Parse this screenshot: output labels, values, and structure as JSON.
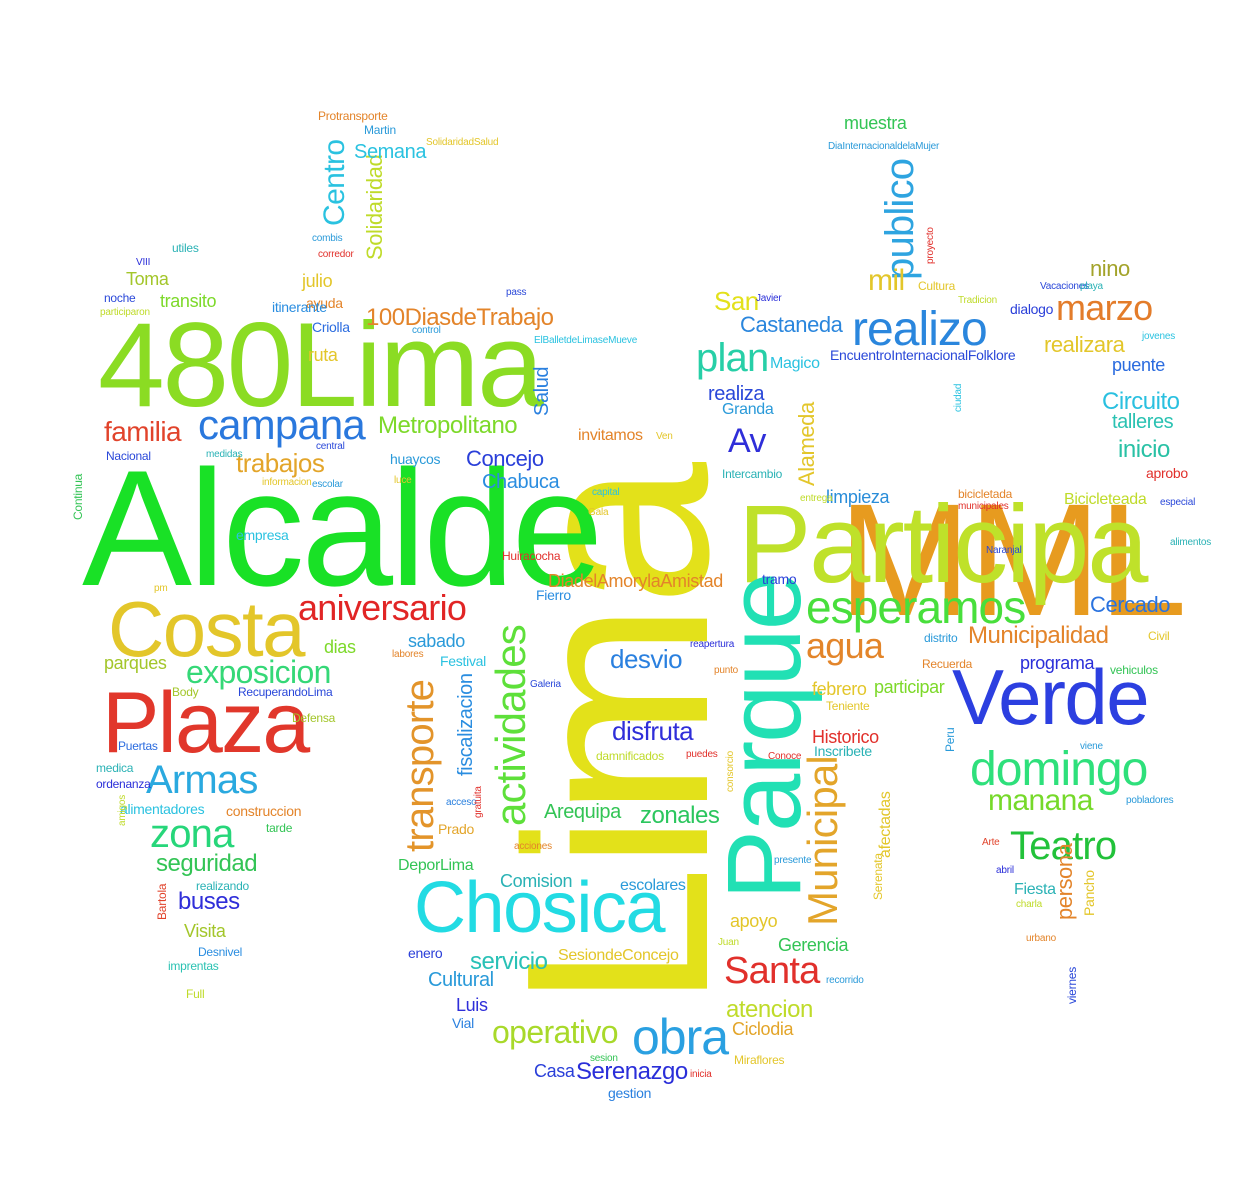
{
  "words": [
    {
      "text": "Lima",
      "color": "#e3e11a"
    },
    {
      "text": "MML",
      "color": "#e79b1f"
    },
    {
      "text": "Alcalde",
      "color": "#19e126"
    },
    {
      "text": "480Lima",
      "color": "#8bdc23"
    },
    {
      "text": "Participa",
      "color": "#bfe12a"
    },
    {
      "text": "Parque",
      "color": "#21e0b4"
    },
    {
      "text": "Verde",
      "color": "#2c3fe0"
    },
    {
      "text": "Chosica",
      "color": "#22dbe3"
    },
    {
      "text": "Plaza",
      "color": "#e1372b"
    },
    {
      "text": "Costa",
      "color": "#e3c62a"
    },
    {
      "text": "realizo",
      "color": "#2a86dd"
    },
    {
      "text": "campana",
      "color": "#2a78dd"
    },
    {
      "text": "actividades",
      "color": "#5ee03a"
    },
    {
      "text": "domingo",
      "color": "#2ee07b"
    },
    {
      "text": "esperamos",
      "color": "#48df3c"
    },
    {
      "text": "Armas",
      "color": "#2aa9df"
    },
    {
      "text": "aniversario",
      "color": "#e12525"
    },
    {
      "text": "obra",
      "color": "#2aa0e1"
    },
    {
      "text": "Municipal",
      "color": "#e3a52a"
    },
    {
      "text": "transporte",
      "color": "#e3942a"
    },
    {
      "text": "Teatro",
      "color": "#22c23a"
    },
    {
      "text": "zona",
      "color": "#27d67a"
    },
    {
      "text": "marzo",
      "color": "#e37c2a"
    },
    {
      "text": "Santa",
      "color": "#e1302b"
    },
    {
      "text": "exposicion",
      "color": "#35d877"
    },
    {
      "text": "plan",
      "color": "#27cfa7"
    },
    {
      "text": "publico",
      "color": "#2ea4e0"
    },
    {
      "text": "manana",
      "color": "#76d92a"
    },
    {
      "text": "agua",
      "color": "#e3852a"
    },
    {
      "text": "operativo",
      "color": "#a8d92a"
    },
    {
      "text": "Av",
      "color": "#2f2ed9"
    },
    {
      "text": "Centro",
      "color": "#2ac2e0"
    },
    {
      "text": "Metropolitano",
      "color": "#7dd92a"
    },
    {
      "text": "trabajos",
      "color": "#e3a52a"
    },
    {
      "text": "Municipalidad",
      "color": "#e3842a"
    },
    {
      "text": "familia",
      "color": "#e1432b"
    },
    {
      "text": "100DiasdeTrabajo",
      "color": "#e3842a"
    },
    {
      "text": "mil",
      "color": "#e3c62a"
    },
    {
      "text": "desvio",
      "color": "#2a80df"
    },
    {
      "text": "disfruta",
      "color": "#2f2ed9"
    },
    {
      "text": "Cercado",
      "color": "#2a73df"
    },
    {
      "text": "Circuito",
      "color": "#2ac0e0"
    },
    {
      "text": "Alameda",
      "color": "#e3c62a"
    },
    {
      "text": "seguridad",
      "color": "#33c455"
    },
    {
      "text": "Serenazgo",
      "color": "#2a2ed9"
    },
    {
      "text": "atencion",
      "color": "#bfdb2a"
    },
    {
      "text": "servicio",
      "color": "#29c1b6"
    },
    {
      "text": "zonales",
      "color": "#2bc65e"
    },
    {
      "text": "inicio",
      "color": "#29c1a5"
    },
    {
      "text": "Concejo",
      "color": "#2a3fd9"
    },
    {
      "text": "Comision",
      "color": "#2ab2b5"
    },
    {
      "text": "Solidaridad",
      "color": "#bfdb2a"
    },
    {
      "text": "realizara",
      "color": "#e3c62a"
    },
    {
      "text": "Castaneda",
      "color": "#2a86dd"
    },
    {
      "text": "Chabuca",
      "color": "#2a8de0"
    },
    {
      "text": "Arequipa",
      "color": "#33c455"
    },
    {
      "text": "buses",
      "color": "#2f2ed9"
    },
    {
      "text": "San",
      "color": "#e3e11a"
    },
    {
      "text": "persona",
      "color": "#e3842a"
    },
    {
      "text": "fiscalizacion",
      "color": "#2a8de0"
    },
    {
      "text": "nino",
      "color": "#a3a32a"
    },
    {
      "text": "Semana",
      "color": "#2ac2e0"
    },
    {
      "text": "Salud",
      "color": "#2a80df"
    },
    {
      "text": "talleres",
      "color": "#2ac2b2"
    },
    {
      "text": "realiza",
      "color": "#2a48d9"
    },
    {
      "text": "Historico",
      "color": "#e1302b"
    },
    {
      "text": "programa",
      "color": "#2a2ed9"
    },
    {
      "text": "febrero",
      "color": "#e3c62a"
    },
    {
      "text": "participar",
      "color": "#7dd92a"
    },
    {
      "text": "Cultural",
      "color": "#2a9ad9"
    },
    {
      "text": "apoyo",
      "color": "#e3c62a"
    },
    {
      "text": "Gerencia",
      "color": "#33c455"
    },
    {
      "text": "limpieza",
      "color": "#2a8dd9"
    },
    {
      "text": "Bicicleteada",
      "color": "#bfdb2a"
    },
    {
      "text": "Ciclodia",
      "color": "#e3a52a"
    },
    {
      "text": "Casa",
      "color": "#2a3fd9"
    },
    {
      "text": "puente",
      "color": "#2a6bdf"
    },
    {
      "text": "afectadas",
      "color": "#e3c62a"
    },
    {
      "text": "Luis",
      "color": "#2f2ed9"
    },
    {
      "text": "muestra",
      "color": "#33c455"
    },
    {
      "text": "Toma",
      "color": "#a3c62a"
    },
    {
      "text": "transito",
      "color": "#7dd92a"
    },
    {
      "text": "julio",
      "color": "#e3c62a"
    },
    {
      "text": "ruta",
      "color": "#e3c62a"
    },
    {
      "text": "dias",
      "color": "#7dd92a"
    },
    {
      "text": "sabado",
      "color": "#2a9ad9"
    },
    {
      "text": "parques",
      "color": "#a3c62a"
    },
    {
      "text": "DiadelAmorylaAmistad",
      "color": "#e3842a"
    },
    {
      "text": "invitamos",
      "color": "#e3842a"
    },
    {
      "text": "Fiesta",
      "color": "#2ab2b5"
    },
    {
      "text": "Visita",
      "color": "#a3c62a"
    },
    {
      "text": "escolares",
      "color": "#2a9ad9"
    },
    {
      "text": "DeporLima",
      "color": "#33c455"
    },
    {
      "text": "Magico",
      "color": "#2ac2e0"
    },
    {
      "text": "Granda",
      "color": "#2a9ad9"
    },
    {
      "text": "Inscribete",
      "color": "#2ab2b5"
    },
    {
      "text": "Fierro",
      "color": "#2a8de0"
    },
    {
      "text": "huaycos",
      "color": "#2a9ad9"
    },
    {
      "text": "dialogo",
      "color": "#2a3fd9"
    },
    {
      "text": "Prado",
      "color": "#e3a52a"
    },
    {
      "text": "tramo",
      "color": "#2a3fd9"
    },
    {
      "text": "SesiondeConcejo",
      "color": "#e3c62a"
    },
    {
      "text": "Criolla",
      "color": "#2a6bdf"
    },
    {
      "text": "Intercambio",
      "color": "#2ab2b5"
    },
    {
      "text": "enero",
      "color": "#2a3fd9"
    },
    {
      "text": "Festival",
      "color": "#2ac2e0"
    },
    {
      "text": "Vial",
      "color": "#2a80df"
    },
    {
      "text": "aprobo",
      "color": "#e1302b"
    },
    {
      "text": "ayuda",
      "color": "#e3842a"
    },
    {
      "text": "alimentadores",
      "color": "#2ac2e0"
    },
    {
      "text": "construccion",
      "color": "#e3842a"
    },
    {
      "text": "Nacional",
      "color": "#2a48d9"
    },
    {
      "text": "gestion",
      "color": "#2a80df"
    },
    {
      "text": "empresa",
      "color": "#2ac2e0"
    },
    {
      "text": "itinerante",
      "color": "#2a8de0"
    },
    {
      "text": "Cultura",
      "color": "#e3c62a"
    },
    {
      "text": "bicicletada",
      "color": "#e3842a"
    },
    {
      "text": "Pancho",
      "color": "#e3c62a"
    },
    {
      "text": "EncuentroInternacionalFolklore",
      "color": "#2a48d9"
    },
    {
      "text": "Huiracocha",
      "color": "#e1302b"
    },
    {
      "text": "Continua",
      "color": "#33c455"
    },
    {
      "text": "Desnivel",
      "color": "#2a8de0"
    },
    {
      "text": "imprentas",
      "color": "#2ac2b2"
    },
    {
      "text": "Full",
      "color": "#bfdb2a"
    },
    {
      "text": "Body",
      "color": "#a3c62a"
    },
    {
      "text": "RecuperandoLima",
      "color": "#2a48d9"
    },
    {
      "text": "Defensa",
      "color": "#a3c62a"
    },
    {
      "text": "Puertas",
      "color": "#2a6bdf"
    },
    {
      "text": "medica",
      "color": "#2ab2b5"
    },
    {
      "text": "ordenanza",
      "color": "#2a2ed9"
    },
    {
      "text": "tarde",
      "color": "#33c455"
    },
    {
      "text": "realizando",
      "color": "#2ab2b5"
    },
    {
      "text": "Bartola",
      "color": "#e1432b"
    },
    {
      "text": "Recuerda",
      "color": "#e3842a"
    },
    {
      "text": "distrito",
      "color": "#2a9ad9"
    },
    {
      "text": "Civil",
      "color": "#e3c62a"
    },
    {
      "text": "vehiculos",
      "color": "#33c455"
    },
    {
      "text": "Teniente",
      "color": "#e3c62a"
    },
    {
      "text": "Peru",
      "color": "#2a9ad9"
    },
    {
      "text": "Conoce",
      "color": "#e1302b"
    },
    {
      "text": "Arte",
      "color": "#e1432b"
    },
    {
      "text": "abril",
      "color": "#2a2ed9"
    },
    {
      "text": "charla",
      "color": "#bfdb2a"
    },
    {
      "text": "urbano",
      "color": "#e3842a"
    },
    {
      "text": "viernes",
      "color": "#2a48d9"
    },
    {
      "text": "Serenata",
      "color": "#e3c62a"
    },
    {
      "text": "presente",
      "color": "#2a9ad9"
    },
    {
      "text": "damnificados",
      "color": "#bfdb2a"
    },
    {
      "text": "puedes",
      "color": "#e1302b"
    },
    {
      "text": "consorcio",
      "color": "#e3c62a"
    },
    {
      "text": "acceso",
      "color": "#2a80df"
    },
    {
      "text": "gratuita",
      "color": "#e1302b"
    },
    {
      "text": "acciones",
      "color": "#e3842a"
    },
    {
      "text": "Juan",
      "color": "#bfdb2a"
    },
    {
      "text": "recorrido",
      "color": "#2a9ad9"
    },
    {
      "text": "sesion",
      "color": "#33c455"
    },
    {
      "text": "inicia",
      "color": "#e1302b"
    },
    {
      "text": "Miraflores",
      "color": "#e3c62a"
    },
    {
      "text": "labores",
      "color": "#e3842a"
    },
    {
      "text": "reapertura",
      "color": "#2a2ed9"
    },
    {
      "text": "punto",
      "color": "#e3842a"
    },
    {
      "text": "Galeria",
      "color": "#2a48d9"
    },
    {
      "text": "informacion",
      "color": "#e3c62a"
    },
    {
      "text": "escolar",
      "color": "#2a9ad9"
    },
    {
      "text": "luce",
      "color": "#e3c62a"
    },
    {
      "text": "capital",
      "color": "#2ac2e0"
    },
    {
      "text": "Gala",
      "color": "#e3c62a"
    },
    {
      "text": "entrega",
      "color": "#bfdb2a"
    },
    {
      "text": "municipales",
      "color": "#e1302b"
    },
    {
      "text": "Naranjal",
      "color": "#2a48d9"
    },
    {
      "text": "especial",
      "color": "#2a48d9"
    },
    {
      "text": "alimentos",
      "color": "#2ab2b5"
    },
    {
      "text": "Ven",
      "color": "#e3c62a"
    },
    {
      "text": "medidas",
      "color": "#2ab2b5"
    },
    {
      "text": "central",
      "color": "#2a48d9"
    },
    {
      "text": "ElBalletdeLimaseMueve",
      "color": "#2ac2e0"
    },
    {
      "text": "control",
      "color": "#2a9ad9"
    },
    {
      "text": "pass",
      "color": "#2a48d9"
    },
    {
      "text": "Javier",
      "color": "#2a2ed9"
    },
    {
      "text": "Tradicion",
      "color": "#bfdb2a"
    },
    {
      "text": "Vacaciones",
      "color": "#2a48d9"
    },
    {
      "text": "playa",
      "color": "#2ab2b5"
    },
    {
      "text": "jovenes",
      "color": "#2ac2e0"
    },
    {
      "text": "ciudad",
      "color": "#2ac2e0"
    },
    {
      "text": "DiaInternacionaldelaMujer",
      "color": "#2a9ad9"
    },
    {
      "text": "proyecto",
      "color": "#e1302b"
    },
    {
      "text": "combis",
      "color": "#2a9ad9"
    },
    {
      "text": "corredor",
      "color": "#e1302b"
    },
    {
      "text": "VIII",
      "color": "#2a2ed9"
    },
    {
      "text": "utiles",
      "color": "#2ab2b5"
    },
    {
      "text": "noche",
      "color": "#2a48d9"
    },
    {
      "text": "participaron",
      "color": "#bfdb2a"
    },
    {
      "text": "Protransporte",
      "color": "#e3842a"
    },
    {
      "text": "Martin",
      "color": "#2a9ad9"
    },
    {
      "text": "SolidaridadSalud",
      "color": "#e3c62a"
    },
    {
      "text": "pm",
      "color": "#e3c62a"
    },
    {
      "text": "amigos",
      "color": "#bfdb2a"
    },
    {
      "text": "pobladores",
      "color": "#2a9ad9"
    },
    {
      "text": "viene",
      "color": "#2a9ad9"
    }
  ]
}
